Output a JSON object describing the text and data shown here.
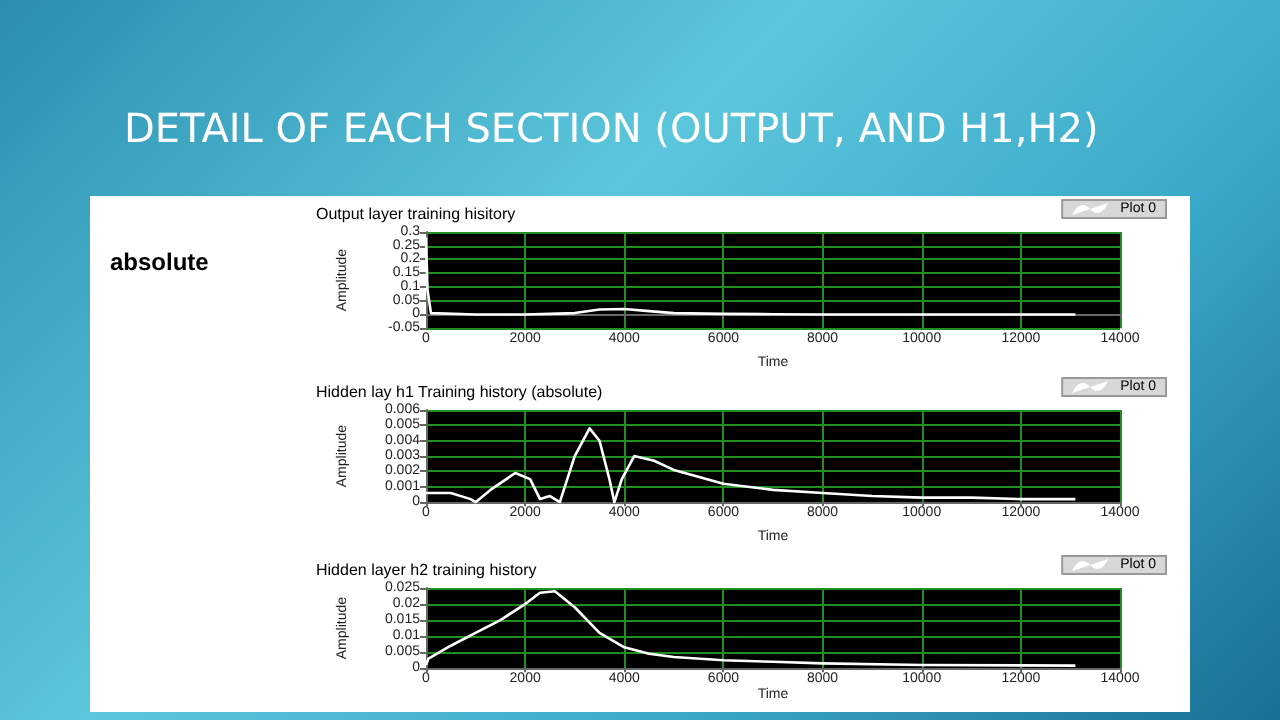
{
  "chart_data": [
    {
      "type": "line",
      "title": "DETAIL OF EACH SECTION (OUTPUT, AND H1,H2)",
      "subtitle": "Output layer training hisitory",
      "annotations": [
        "absolute"
      ],
      "xlabel": "Time",
      "ylabel": "Amplitude",
      "xlim": [
        0,
        14000
      ],
      "xticks": [
        0,
        2000,
        4000,
        6000,
        8000,
        10000,
        12000,
        14000
      ],
      "ylim": [
        -0.05,
        0.3
      ],
      "yticks": [
        -0.05,
        0,
        0.05,
        0.1,
        0.15,
        0.2,
        0.25,
        0.3
      ],
      "grid": true,
      "legend": "top right",
      "marker": "none",
      "line_style": "solid",
      "series": [
        {
          "name": "Plot 0",
          "color": "#ffffff",
          "x": [
            0,
            30,
            100,
            1000,
            2000,
            2500,
            3000,
            3500,
            4000,
            4500,
            5000,
            6000,
            7000,
            8000,
            10000,
            13100
          ],
          "values": [
            0.28,
            0.09,
            0.005,
            0,
            0,
            0.002,
            0.005,
            0.018,
            0.02,
            0.012,
            0.005,
            0.002,
            0.001,
            0,
            0,
            0
          ]
        }
      ]
    },
    {
      "type": "line",
      "subtitle": "Hidden lay h1 Training history (absolute)",
      "xlabel": "Time",
      "ylabel": "Amplitude",
      "xlim": [
        0,
        14000
      ],
      "xticks": [
        0,
        2000,
        4000,
        6000,
        8000,
        10000,
        12000,
        14000
      ],
      "ylim": [
        0,
        0.006
      ],
      "yticks": [
        0,
        0.001,
        0.002,
        0.003,
        0.004,
        0.005,
        0.006
      ],
      "grid": true,
      "legend": "top right",
      "marker": "none",
      "line_style": "solid",
      "series": [
        {
          "name": "Plot 0",
          "color": "#ffffff",
          "x": [
            0,
            500,
            900,
            1000,
            1300,
            1800,
            2100,
            2300,
            2400,
            2500,
            2700,
            3000,
            3300,
            3500,
            3700,
            3800,
            3950,
            4200,
            4600,
            5000,
            6000,
            7000,
            8000,
            9000,
            10000,
            11000,
            12000,
            13100
          ],
          "values": [
            0.0006,
            0.0006,
            0.0002,
            0,
            0.0008,
            0.0019,
            0.0015,
            0.0002,
            0.0003,
            0.0004,
            0,
            0.003,
            0.0048,
            0.004,
            0.0015,
            0,
            0.0015,
            0.003,
            0.0027,
            0.0021,
            0.0012,
            0.0008,
            0.0006,
            0.0004,
            0.0003,
            0.0003,
            0.0002,
            0.0002
          ]
        }
      ]
    },
    {
      "type": "line",
      "subtitle": "Hidden layer h2 training history",
      "xlabel": "Time",
      "ylabel": "Amplitude",
      "xlim": [
        0,
        14000
      ],
      "xticks": [
        0,
        2000,
        4000,
        6000,
        8000,
        10000,
        12000,
        14000
      ],
      "ylim": [
        0,
        0.025
      ],
      "yticks": [
        0,
        0.005,
        0.01,
        0.015,
        0.02,
        0.025
      ],
      "grid": true,
      "legend": "top right",
      "marker": "none",
      "line_style": "solid",
      "series": [
        {
          "name": "Plot 0",
          "color": "#ffffff",
          "x": [
            0,
            50,
            500,
            1000,
            1500,
            2000,
            2300,
            2600,
            3000,
            3500,
            4000,
            4500,
            5000,
            6000,
            7000,
            8000,
            10000,
            13100
          ],
          "values": [
            0.001,
            0.003,
            0.007,
            0.011,
            0.015,
            0.02,
            0.0235,
            0.024,
            0.019,
            0.011,
            0.0065,
            0.0045,
            0.0035,
            0.0025,
            0.002,
            0.0015,
            0.001,
            0.0008
          ]
        }
      ]
    }
  ]
}
